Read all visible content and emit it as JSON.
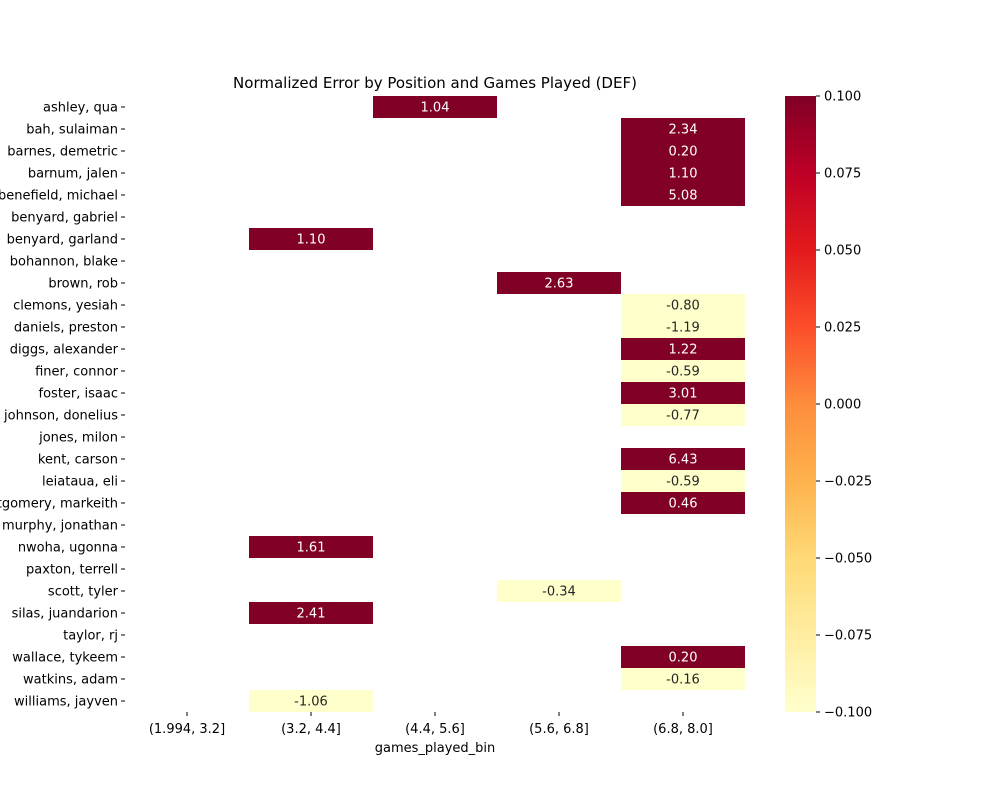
{
  "chart_data": {
    "type": "heatmap",
    "title": "Normalized Error by Position and Games Played (DEF)",
    "xlabel": "games_played_bin",
    "ylabel": "",
    "x_categories": [
      "(1.994, 3.2]",
      "(3.2, 4.4]",
      "(4.4, 5.6]",
      "(5.6, 6.8]",
      "(6.8, 8.0]"
    ],
    "y_categories": [
      "ashley, qua",
      "bah, sulaiman",
      "barnes, demetric",
      "barnum, jalen",
      "benefield, michael",
      "benyard, gabriel",
      "benyard, garland",
      "bohannon, blake",
      "brown, rob",
      "clemons, yesiah",
      "daniels, preston",
      "diggs, alexander",
      "finer, connor",
      "foster, isaac",
      "johnson, donelius",
      "jones, milon",
      "kent, carson",
      "leiataua, eli",
      "montgomery, markeith",
      "murphy, jonathan",
      "nwoha, ugonna",
      "paxton, terrell",
      "scott, tyler",
      "silas, juandarion",
      "taylor, rj",
      "wallace, tykeem",
      "watkins, adam",
      "williams, jayven"
    ],
    "cells": [
      {
        "row": 0,
        "col": 2,
        "value": 1.04,
        "label": "1.04"
      },
      {
        "row": 1,
        "col": 4,
        "value": 2.34,
        "label": "2.34"
      },
      {
        "row": 2,
        "col": 4,
        "value": 0.2,
        "label": "0.20"
      },
      {
        "row": 3,
        "col": 4,
        "value": 1.1,
        "label": "1.10"
      },
      {
        "row": 4,
        "col": 4,
        "value": 5.08,
        "label": "5.08"
      },
      {
        "row": 6,
        "col": 1,
        "value": 1.1,
        "label": "1.10"
      },
      {
        "row": 8,
        "col": 3,
        "value": 2.63,
        "label": "2.63"
      },
      {
        "row": 9,
        "col": 4,
        "value": -0.8,
        "label": "-0.80"
      },
      {
        "row": 10,
        "col": 4,
        "value": -1.19,
        "label": "-1.19"
      },
      {
        "row": 11,
        "col": 4,
        "value": 1.22,
        "label": "1.22"
      },
      {
        "row": 12,
        "col": 4,
        "value": -0.59,
        "label": "-0.59"
      },
      {
        "row": 13,
        "col": 4,
        "value": 3.01,
        "label": "3.01"
      },
      {
        "row": 14,
        "col": 4,
        "value": -0.77,
        "label": "-0.77"
      },
      {
        "row": 16,
        "col": 4,
        "value": 6.43,
        "label": "6.43"
      },
      {
        "row": 17,
        "col": 4,
        "value": -0.59,
        "label": "-0.59"
      },
      {
        "row": 18,
        "col": 4,
        "value": 0.46,
        "label": "0.46"
      },
      {
        "row": 20,
        "col": 1,
        "value": 1.61,
        "label": "1.61"
      },
      {
        "row": 22,
        "col": 3,
        "value": -0.34,
        "label": "-0.34"
      },
      {
        "row": 23,
        "col": 1,
        "value": 2.41,
        "label": "2.41"
      },
      {
        "row": 25,
        "col": 4,
        "value": 0.2,
        "label": "0.20"
      },
      {
        "row": 26,
        "col": 4,
        "value": -0.16,
        "label": "-0.16"
      },
      {
        "row": 27,
        "col": 1,
        "value": -1.06,
        "label": "-1.06"
      }
    ],
    "colorbar": {
      "vmin": -0.1,
      "vmax": 0.1,
      "ticks": [
        0.1,
        0.075,
        0.05,
        0.025,
        0.0,
        -0.025,
        -0.05,
        -0.075,
        -0.1
      ],
      "tick_labels": [
        "0.100",
        "0.075",
        "0.050",
        "0.025",
        "0.000",
        "−0.025",
        "−0.050",
        "−0.075",
        "−0.100"
      ],
      "colormap": "YlOrRd",
      "color_stops": [
        "#ffffcc",
        "#ffeda0",
        "#fed976",
        "#feb24c",
        "#fd8d3c",
        "#fc4e2a",
        "#e31a1c",
        "#bd0026",
        "#800026"
      ],
      "placement": "right"
    },
    "grid": false
  }
}
